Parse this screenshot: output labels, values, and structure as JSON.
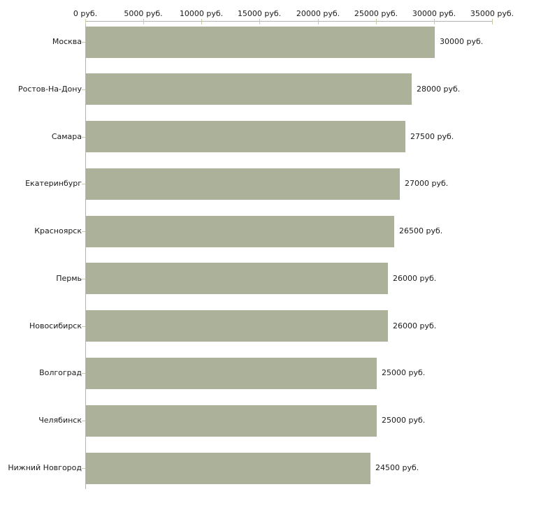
{
  "chart_data": {
    "type": "bar",
    "orientation": "horizontal",
    "title": "",
    "xlabel": "",
    "ylabel": "",
    "categories": [
      "Москва",
      "Ростов-На-Дону",
      "Самара",
      "Екатеринбург",
      "Красноярск",
      "Пермь",
      "Новосибирск",
      "Волгоград",
      "Челябинск",
      "Нижний Новгород"
    ],
    "values": [
      30000,
      28000,
      27500,
      27000,
      26500,
      26000,
      26000,
      25000,
      25000,
      24500
    ],
    "value_labels": [
      "30000 руб.",
      "28000 руб.",
      "27500 руб.",
      "27000 руб.",
      "26500 руб.",
      "26000 руб.",
      "26000 руб.",
      "25000 руб.",
      "25000 руб.",
      "24500 руб."
    ],
    "x_tick_values": [
      0,
      5000,
      10000,
      15000,
      20000,
      25000,
      30000,
      35000
    ],
    "x_tick_labels": [
      "0 руб.",
      "5000 руб.",
      "10000 руб.",
      "15000 руб.",
      "20000 руб.",
      "25000 руб.",
      "30000 руб.",
      "35000 руб."
    ],
    "xlim": [
      0,
      35000
    ],
    "grid": false,
    "legend": false,
    "colors": {
      "bar": "#acb299",
      "axis_line": "#b3b3b3",
      "tick": "#c9c9a3",
      "text": "#1a1a1a",
      "background": "#ffffff"
    }
  }
}
